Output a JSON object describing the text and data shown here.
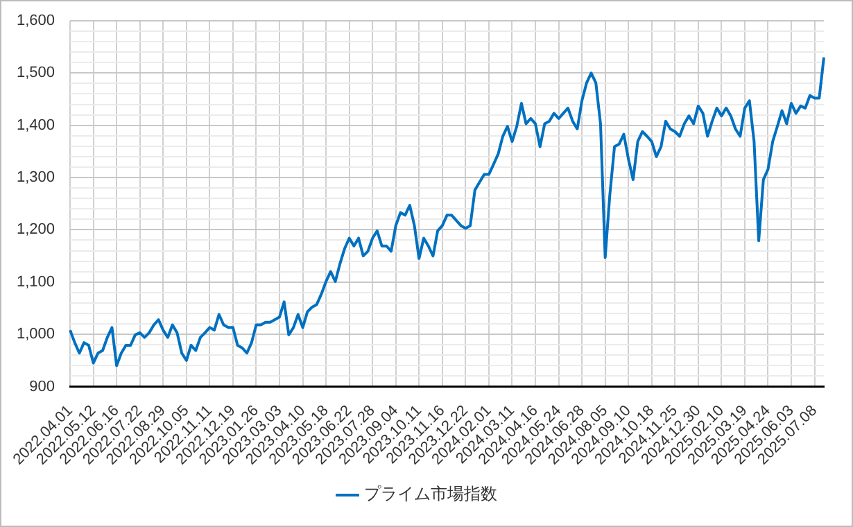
{
  "chart_data": {
    "type": "line",
    "categories": [
      "2022.04.01",
      null,
      null,
      null,
      null,
      "2022.05.12",
      null,
      null,
      null,
      null,
      "2022.06.16",
      null,
      null,
      null,
      null,
      "2022.07.22",
      null,
      null,
      null,
      null,
      "2022.08.29",
      null,
      null,
      null,
      null,
      "2022.10.05",
      null,
      null,
      null,
      null,
      "2022.11.11",
      null,
      null,
      null,
      null,
      "2022.12.19",
      null,
      null,
      null,
      null,
      "2023.01.26",
      null,
      null,
      null,
      null,
      "2023.03.03",
      null,
      null,
      null,
      null,
      "2023.04.10",
      null,
      null,
      null,
      null,
      "2023.05.18",
      null,
      null,
      null,
      null,
      "2023.06.22",
      null,
      null,
      null,
      null,
      "2023.07.28",
      null,
      null,
      null,
      null,
      "2023.09.04",
      null,
      null,
      null,
      null,
      "2023.10.11",
      null,
      null,
      null,
      null,
      "2023.11.16",
      null,
      null,
      null,
      null,
      "2023.12.22",
      null,
      null,
      null,
      null,
      "2024.02.01",
      null,
      null,
      null,
      null,
      "2024.03.11",
      null,
      null,
      null,
      null,
      "2024.04.16",
      null,
      null,
      null,
      null,
      "2024.05.24",
      null,
      null,
      null,
      null,
      "2024.06.28",
      null,
      null,
      null,
      null,
      "2024.08.05",
      null,
      null,
      null,
      null,
      "2024.09.10",
      null,
      null,
      null,
      null,
      "2024.10.18",
      null,
      null,
      null,
      null,
      "2024.11.25",
      null,
      null,
      null,
      null,
      "2024.12.30",
      null,
      null,
      null,
      null,
      "2025.02.10",
      null,
      null,
      null,
      null,
      "2025.03.19",
      null,
      null,
      null,
      null,
      "2025.04.24",
      null,
      null,
      null,
      null,
      "2025.06.03",
      null,
      null,
      null,
      null,
      "2025.07.08",
      null,
      null
    ],
    "series": [
      {
        "name": "プライム市場指数",
        "color": "#0070c0",
        "values": [
          1008,
          984,
          964,
          984,
          979,
          945,
          964,
          969,
          994,
          1013,
          940,
          964,
          979,
          979,
          999,
          1003,
          994,
          1003,
          1018,
          1028,
          1008,
          994,
          1018,
          1003,
          964,
          950,
          979,
          969,
          994,
          1003,
          1013,
          1008,
          1038,
          1018,
          1013,
          1013,
          979,
          974,
          964,
          984,
          1018,
          1018,
          1023,
          1023,
          1028,
          1033,
          1062,
          999,
          1013,
          1038,
          1013,
          1043,
          1052,
          1057,
          1077,
          1101,
          1120,
          1101,
          1135,
          1164,
          1184,
          1169,
          1184,
          1150,
          1159,
          1184,
          1198,
          1169,
          1169,
          1159,
          1208,
          1233,
          1228,
          1247,
          1208,
          1145,
          1184,
          1169,
          1150,
          1198,
          1208,
          1228,
          1228,
          1218,
          1208,
          1203,
          1208,
          1276,
          1291,
          1306,
          1306,
          1325,
          1345,
          1379,
          1398,
          1369,
          1398,
          1442,
          1403,
          1413,
          1403,
          1359,
          1403,
          1408,
          1423,
          1413,
          1423,
          1433,
          1408,
          1393,
          1447,
          1481,
          1500,
          1481,
          1403,
          1147,
          1267,
          1359,
          1364,
          1383,
          1335,
          1296,
          1369,
          1388,
          1379,
          1369,
          1340,
          1359,
          1408,
          1393,
          1388,
          1379,
          1403,
          1418,
          1403,
          1437,
          1423,
          1379,
          1408,
          1433,
          1418,
          1433,
          1418,
          1393,
          1379,
          1433,
          1447,
          1369,
          1179,
          1296,
          1316,
          1369,
          1398,
          1428,
          1403,
          1442,
          1423,
          1437,
          1433,
          1457,
          1452,
          1452,
          1530
        ]
      }
    ],
    "ylim": [
      900,
      1600
    ],
    "yticks": [
      {
        "value": 900,
        "label": "900"
      },
      {
        "value": 920,
        "label": null
      },
      {
        "value": 940,
        "label": null
      },
      {
        "value": 960,
        "label": null
      },
      {
        "value": 980,
        "label": null
      },
      {
        "value": 1000,
        "label": "1,000"
      },
      {
        "value": 1020,
        "label": null
      },
      {
        "value": 1040,
        "label": null
      },
      {
        "value": 1060,
        "label": null
      },
      {
        "value": 1080,
        "label": null
      },
      {
        "value": 1100,
        "label": "1,100"
      },
      {
        "value": 1120,
        "label": null
      },
      {
        "value": 1140,
        "label": null
      },
      {
        "value": 1160,
        "label": null
      },
      {
        "value": 1180,
        "label": null
      },
      {
        "value": 1200,
        "label": "1,200"
      },
      {
        "value": 1220,
        "label": null
      },
      {
        "value": 1240,
        "label": null
      },
      {
        "value": 1260,
        "label": null
      },
      {
        "value": 1280,
        "label": null
      },
      {
        "value": 1300,
        "label": "1,300"
      },
      {
        "value": 1320,
        "label": null
      },
      {
        "value": 1340,
        "label": null
      },
      {
        "value": 1360,
        "label": null
      },
      {
        "value": 1380,
        "label": null
      },
      {
        "value": 1400,
        "label": "1,400"
      },
      {
        "value": 1420,
        "label": null
      },
      {
        "value": 1440,
        "label": null
      },
      {
        "value": 1460,
        "label": null
      },
      {
        "value": 1480,
        "label": null
      },
      {
        "value": 1500,
        "label": "1,500"
      },
      {
        "value": 1520,
        "label": null
      },
      {
        "value": 1540,
        "label": null
      },
      {
        "value": 1560,
        "label": null
      },
      {
        "value": 1580,
        "label": null
      },
      {
        "value": 1600,
        "label": "1,600"
      }
    ],
    "grid": true,
    "legend": "bottom",
    "marker": "none",
    "line_style": "solid"
  }
}
